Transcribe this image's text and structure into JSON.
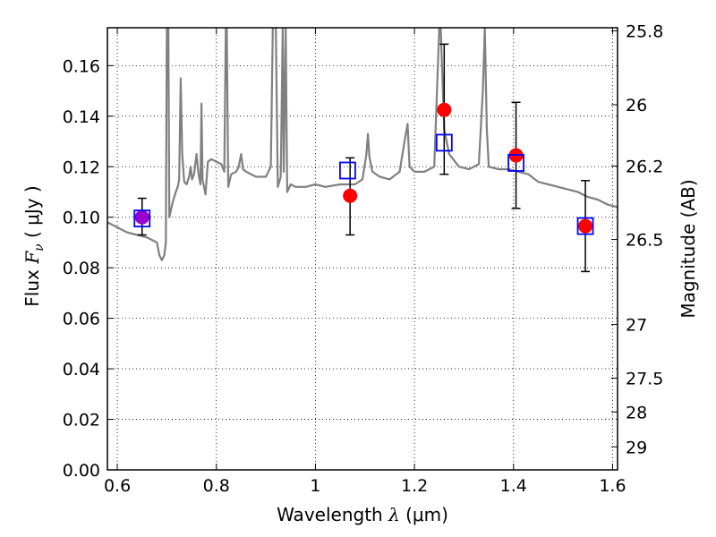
{
  "chart_data": {
    "type": "scatter",
    "xlabel": {
      "prefix": "Wavelength  ",
      "symbol": "λ",
      "unit": " (μm)"
    },
    "ylabel": {
      "prefix": "Flux  ",
      "symbol": "F",
      "subscript": "ν",
      "unit": "  ( μJy )"
    },
    "y2label": "Magnitude (AB)",
    "xlim": [
      0.58,
      1.61
    ],
    "ylim": [
      0.0,
      0.175
    ],
    "grid": true,
    "x_ticks": [
      0.6,
      0.8,
      1.0,
      1.2,
      1.4,
      1.6
    ],
    "x_tick_labels": [
      "0.6",
      "0.8",
      "1",
      "1.2",
      "1.4",
      "1.6"
    ],
    "y_ticks": [
      0.0,
      0.02,
      0.04,
      0.06,
      0.08,
      0.1,
      0.12,
      0.14,
      0.16
    ],
    "y_tick_labels": [
      "0.00",
      "0.02",
      "0.04",
      "0.06",
      "0.08",
      "0.10",
      "0.12",
      "0.14",
      "0.16"
    ],
    "y2_ticks": [
      {
        "label": "25.8",
        "mag": 25.8
      },
      {
        "label": "26",
        "mag": 26.0
      },
      {
        "label": "26.2",
        "mag": 26.2
      },
      {
        "label": "26.5",
        "mag": 26.5
      },
      {
        "label": "27",
        "mag": 27.0
      },
      {
        "label": "27.5",
        "mag": 27.5
      },
      {
        "label": "28",
        "mag": 28.0
      },
      {
        "label": "29",
        "mag": 29.0
      }
    ],
    "series": [
      {
        "kind": "model_spectrum",
        "color": "#808080",
        "points": [
          [
            0.58,
            0.098
          ],
          [
            0.6,
            0.096
          ],
          [
            0.62,
            0.094
          ],
          [
            0.64,
            0.093
          ],
          [
            0.66,
            0.092
          ],
          [
            0.67,
            0.091
          ],
          [
            0.68,
            0.09
          ],
          [
            0.685,
            0.085
          ],
          [
            0.69,
            0.083
          ],
          [
            0.695,
            0.085
          ],
          [
            0.698,
            0.09
          ],
          [
            0.7,
            0.175
          ],
          [
            0.703,
            0.175
          ],
          [
            0.705,
            0.1
          ],
          [
            0.712,
            0.106
          ],
          [
            0.718,
            0.11
          ],
          [
            0.722,
            0.112
          ],
          [
            0.725,
            0.115
          ],
          [
            0.728,
            0.155
          ],
          [
            0.731,
            0.125
          ],
          [
            0.735,
            0.114
          ],
          [
            0.74,
            0.113
          ],
          [
            0.745,
            0.116
          ],
          [
            0.748,
            0.12
          ],
          [
            0.751,
            0.115
          ],
          [
            0.755,
            0.117
          ],
          [
            0.76,
            0.125
          ],
          [
            0.764,
            0.117
          ],
          [
            0.768,
            0.113
          ],
          [
            0.77,
            0.145
          ],
          [
            0.772,
            0.115
          ],
          [
            0.778,
            0.109
          ],
          [
            0.783,
            0.122
          ],
          [
            0.79,
            0.123
          ],
          [
            0.8,
            0.122
          ],
          [
            0.81,
            0.121
          ],
          [
            0.816,
            0.118
          ],
          [
            0.819,
            0.175
          ],
          [
            0.821,
            0.175
          ],
          [
            0.824,
            0.112
          ],
          [
            0.83,
            0.117
          ],
          [
            0.84,
            0.118
          ],
          [
            0.845,
            0.12
          ],
          [
            0.85,
            0.125
          ],
          [
            0.854,
            0.119
          ],
          [
            0.86,
            0.118
          ],
          [
            0.88,
            0.116
          ],
          [
            0.9,
            0.116
          ],
          [
            0.91,
            0.12
          ],
          [
            0.914,
            0.175
          ],
          [
            0.92,
            0.175
          ],
          [
            0.924,
            0.112
          ],
          [
            0.93,
            0.116
          ],
          [
            0.934,
            0.175
          ],
          [
            0.936,
            0.118
          ],
          [
            0.94,
            0.175
          ],
          [
            0.943,
            0.11
          ],
          [
            0.95,
            0.113
          ],
          [
            0.96,
            0.112
          ],
          [
            0.98,
            0.112
          ],
          [
            1.0,
            0.113
          ],
          [
            1.02,
            0.112
          ],
          [
            1.05,
            0.113
          ],
          [
            1.08,
            0.113
          ],
          [
            1.095,
            0.115
          ],
          [
            1.103,
            0.125
          ],
          [
            1.106,
            0.133
          ],
          [
            1.109,
            0.124
          ],
          [
            1.115,
            0.118
          ],
          [
            1.13,
            0.116
          ],
          [
            1.15,
            0.115
          ],
          [
            1.17,
            0.118
          ],
          [
            1.18,
            0.13
          ],
          [
            1.186,
            0.137
          ],
          [
            1.19,
            0.12
          ],
          [
            1.2,
            0.118
          ],
          [
            1.22,
            0.118
          ],
          [
            1.24,
            0.12
          ],
          [
            1.25,
            0.175
          ],
          [
            1.253,
            0.175
          ],
          [
            1.26,
            0.135
          ],
          [
            1.27,
            0.125
          ],
          [
            1.29,
            0.12
          ],
          [
            1.31,
            0.119
          ],
          [
            1.33,
            0.121
          ],
          [
            1.338,
            0.15
          ],
          [
            1.342,
            0.175
          ],
          [
            1.346,
            0.135
          ],
          [
            1.35,
            0.12
          ],
          [
            1.37,
            0.119
          ],
          [
            1.39,
            0.119
          ],
          [
            1.41,
            0.118
          ],
          [
            1.43,
            0.117
          ],
          [
            1.45,
            0.114
          ],
          [
            1.47,
            0.113
          ],
          [
            1.49,
            0.112
          ],
          [
            1.51,
            0.111
          ],
          [
            1.53,
            0.11
          ],
          [
            1.55,
            0.108
          ],
          [
            1.57,
            0.107
          ],
          [
            1.59,
            0.105
          ],
          [
            1.61,
            0.104
          ]
        ]
      },
      {
        "kind": "model_photometry",
        "marker": "open-square",
        "color": "#0000ff",
        "points": [
          [
            0.65,
            0.0995
          ],
          [
            1.065,
            0.1185
          ],
          [
            1.26,
            0.1295
          ],
          [
            1.405,
            0.1215
          ],
          [
            1.545,
            0.0965
          ]
        ]
      },
      {
        "kind": "observed",
        "marker": "filled-circle",
        "color": "#ff0000",
        "points": [
          {
            "x": 0.65,
            "y": 0.1,
            "yerr_low": 0.093,
            "yerr_high": 0.1075
          },
          {
            "x": 1.07,
            "y": 0.1085,
            "yerr_low": 0.093,
            "yerr_high": 0.1235
          },
          {
            "x": 1.26,
            "y": 0.1425,
            "yerr_low": 0.117,
            "yerr_high": 0.1685
          },
          {
            "x": 1.405,
            "y": 0.1245,
            "yerr_low": 0.1035,
            "yerr_high": 0.1455
          },
          {
            "x": 1.545,
            "y": 0.0965,
            "yerr_low": 0.0785,
            "yerr_high": 0.1145
          }
        ],
        "overlap_color": "#9900cc"
      }
    ]
  }
}
